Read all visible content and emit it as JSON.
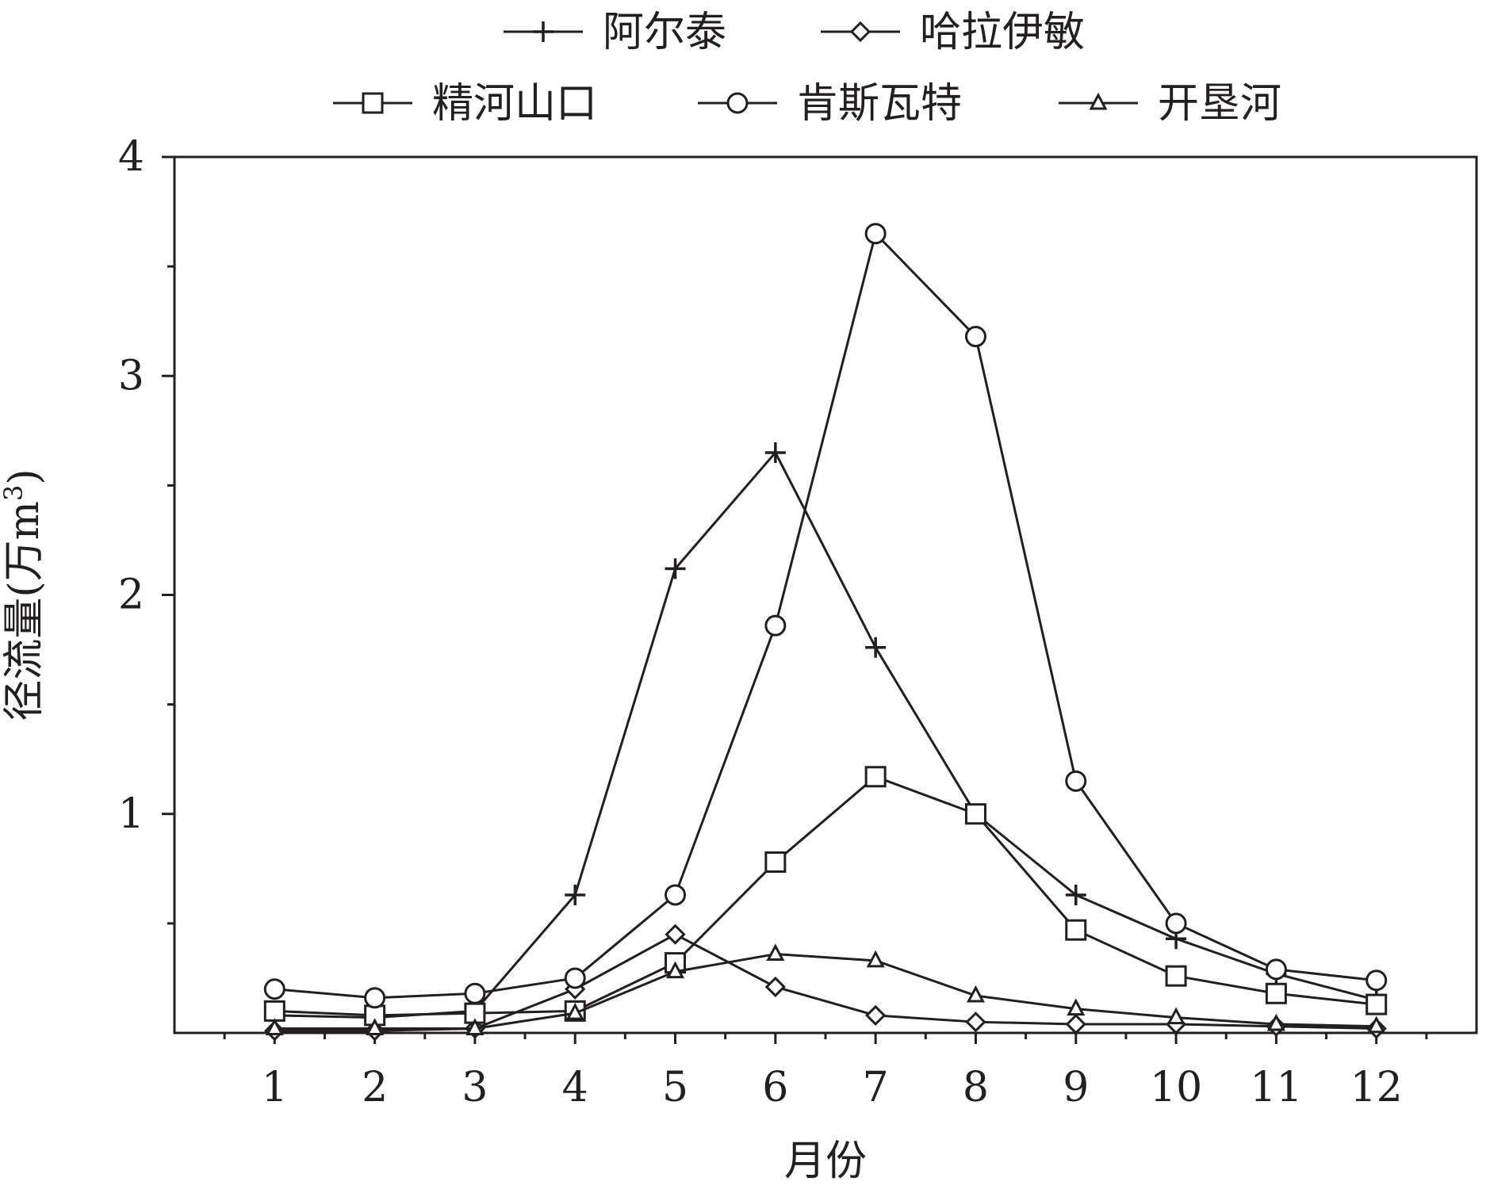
{
  "chart_data": {
    "type": "line",
    "xlabel": "月份",
    "ylabel": "径流量(万m³)",
    "ylabel_parts": {
      "main": "径流量(万m",
      "sup": "3",
      "close": ")"
    },
    "x": [
      1,
      2,
      3,
      4,
      5,
      6,
      7,
      8,
      9,
      10,
      11,
      12
    ],
    "x_tick_labels": [
      "1",
      "2",
      "3",
      "4",
      "5",
      "6",
      "7",
      "8",
      "9",
      "10",
      "11",
      "12"
    ],
    "xlim": [
      0,
      13
    ],
    "ylim": [
      0,
      4
    ],
    "y_ticks": [
      1,
      2,
      3,
      4
    ],
    "y_tick_labels": [
      "1",
      "2",
      "3",
      "4"
    ],
    "y_minor_ticks": [
      0.5,
      1.5,
      2.5,
      3.5
    ],
    "grid": false,
    "legend_position": "top",
    "colors": {
      "line": "#231f20",
      "background": "#ffffff"
    },
    "series": [
      {
        "name": "阿尔泰",
        "marker": "plus",
        "values": [
          0.08,
          0.07,
          0.1,
          0.63,
          2.12,
          2.65,
          1.76,
          1.0,
          0.63,
          0.43,
          0.27,
          0.15
        ]
      },
      {
        "name": "哈拉伊敏",
        "marker": "diamond",
        "values": [
          0.01,
          0.01,
          0.02,
          0.2,
          0.45,
          0.21,
          0.08,
          0.05,
          0.04,
          0.04,
          0.03,
          0.02
        ]
      },
      {
        "name": "精河山口",
        "marker": "square",
        "values": [
          0.1,
          0.08,
          0.09,
          0.1,
          0.32,
          0.78,
          1.17,
          1.0,
          0.47,
          0.26,
          0.18,
          0.13
        ]
      },
      {
        "name": "肯斯瓦特",
        "marker": "circle",
        "values": [
          0.2,
          0.16,
          0.18,
          0.25,
          0.63,
          1.86,
          3.65,
          3.18,
          1.15,
          0.5,
          0.29,
          0.24
        ]
      },
      {
        "name": "开垦河",
        "marker": "triangle",
        "values": [
          0.02,
          0.02,
          0.02,
          0.09,
          0.28,
          0.36,
          0.33,
          0.17,
          0.11,
          0.07,
          0.04,
          0.03
        ]
      }
    ]
  }
}
